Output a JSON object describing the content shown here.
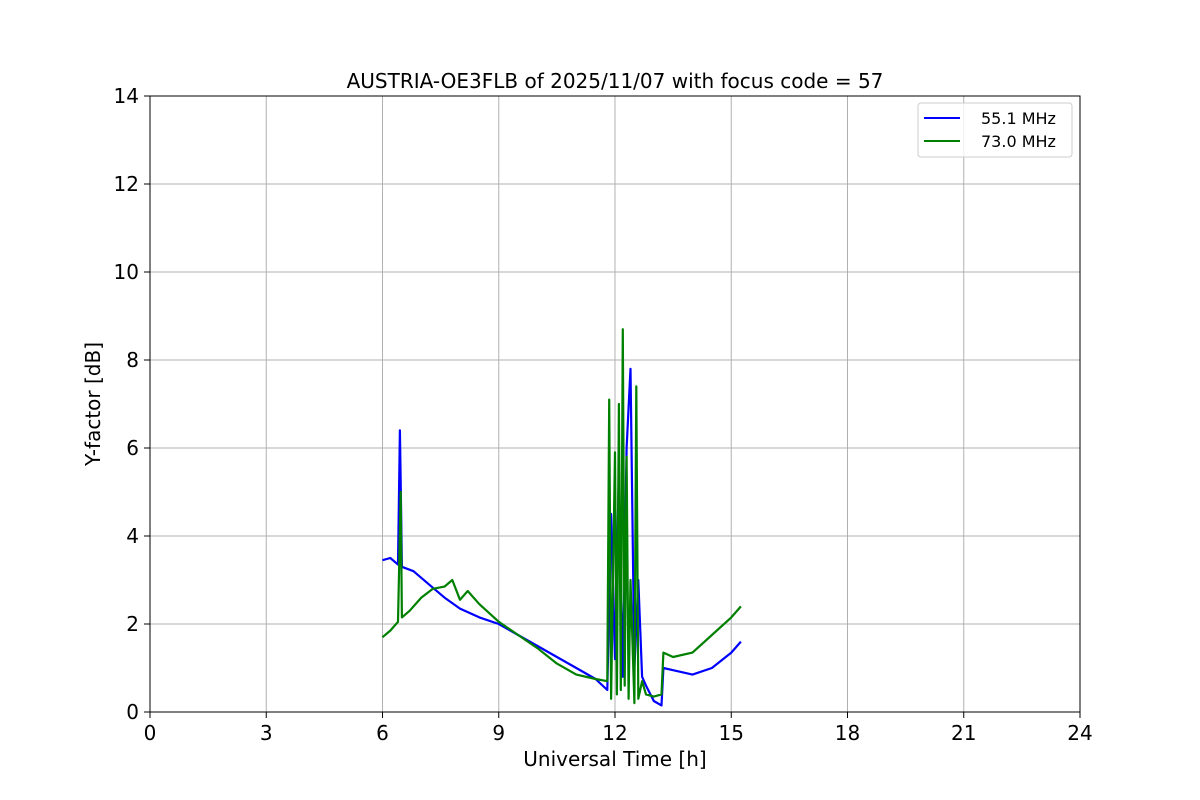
{
  "chart_data": {
    "type": "line",
    "title": "AUSTRIA-OE3FLB of 2025/11/07 with focus code = 57",
    "xlabel": "Universal Time [h]",
    "ylabel": "Y-factor [dB]",
    "xlim": [
      0,
      24
    ],
    "ylim": [
      0,
      14
    ],
    "xticks": [
      0,
      3,
      6,
      9,
      12,
      15,
      18,
      21,
      24
    ],
    "yticks": [
      0,
      2,
      4,
      6,
      8,
      10,
      12,
      14
    ],
    "grid": true,
    "legend_position": "top-right",
    "series": [
      {
        "name": "55.1 MHz",
        "color": "#0000ff",
        "x": [
          6.0,
          6.2,
          6.4,
          6.45,
          6.47,
          6.5,
          6.8,
          7.2,
          7.6,
          8.0,
          8.5,
          9.0,
          9.5,
          10.0,
          10.5,
          11.0,
          11.5,
          11.8,
          11.9,
          12.0,
          12.1,
          12.2,
          12.3,
          12.4,
          12.5,
          12.6,
          12.7,
          12.8,
          13.0,
          13.2,
          13.25,
          13.5,
          14.0,
          14.5,
          15.0,
          15.25
        ],
        "y": [
          3.45,
          3.5,
          3.35,
          6.4,
          5.2,
          3.3,
          3.2,
          2.9,
          2.6,
          2.35,
          2.15,
          2.0,
          1.75,
          1.5,
          1.25,
          1.0,
          0.75,
          0.5,
          4.5,
          1.2,
          5.5,
          0.8,
          6.0,
          7.8,
          1.0,
          3.0,
          0.8,
          0.6,
          0.25,
          0.15,
          1.0,
          0.95,
          0.85,
          1.0,
          1.35,
          1.6
        ]
      },
      {
        "name": "73.0 MHz",
        "color": "#008000",
        "x": [
          6.0,
          6.2,
          6.4,
          6.47,
          6.5,
          6.7,
          7.0,
          7.3,
          7.6,
          7.8,
          8.0,
          8.2,
          8.5,
          9.0,
          9.5,
          10.0,
          10.5,
          11.0,
          11.5,
          11.8,
          11.85,
          11.9,
          12.0,
          12.05,
          12.1,
          12.15,
          12.2,
          12.25,
          12.3,
          12.35,
          12.4,
          12.5,
          12.55,
          12.6,
          12.7,
          12.8,
          13.0,
          13.2,
          13.25,
          13.5,
          14.0,
          14.5,
          15.0,
          15.25
        ],
        "y": [
          1.7,
          1.85,
          2.05,
          5.0,
          2.15,
          2.3,
          2.6,
          2.8,
          2.85,
          3.0,
          2.55,
          2.75,
          2.45,
          2.05,
          1.75,
          1.45,
          1.1,
          0.85,
          0.75,
          0.7,
          7.1,
          0.3,
          5.9,
          0.4,
          7.0,
          0.5,
          8.7,
          0.6,
          5.8,
          0.3,
          3.0,
          0.2,
          7.4,
          0.3,
          0.7,
          0.4,
          0.35,
          0.4,
          1.35,
          1.25,
          1.35,
          1.75,
          2.15,
          2.4
        ]
      }
    ]
  }
}
